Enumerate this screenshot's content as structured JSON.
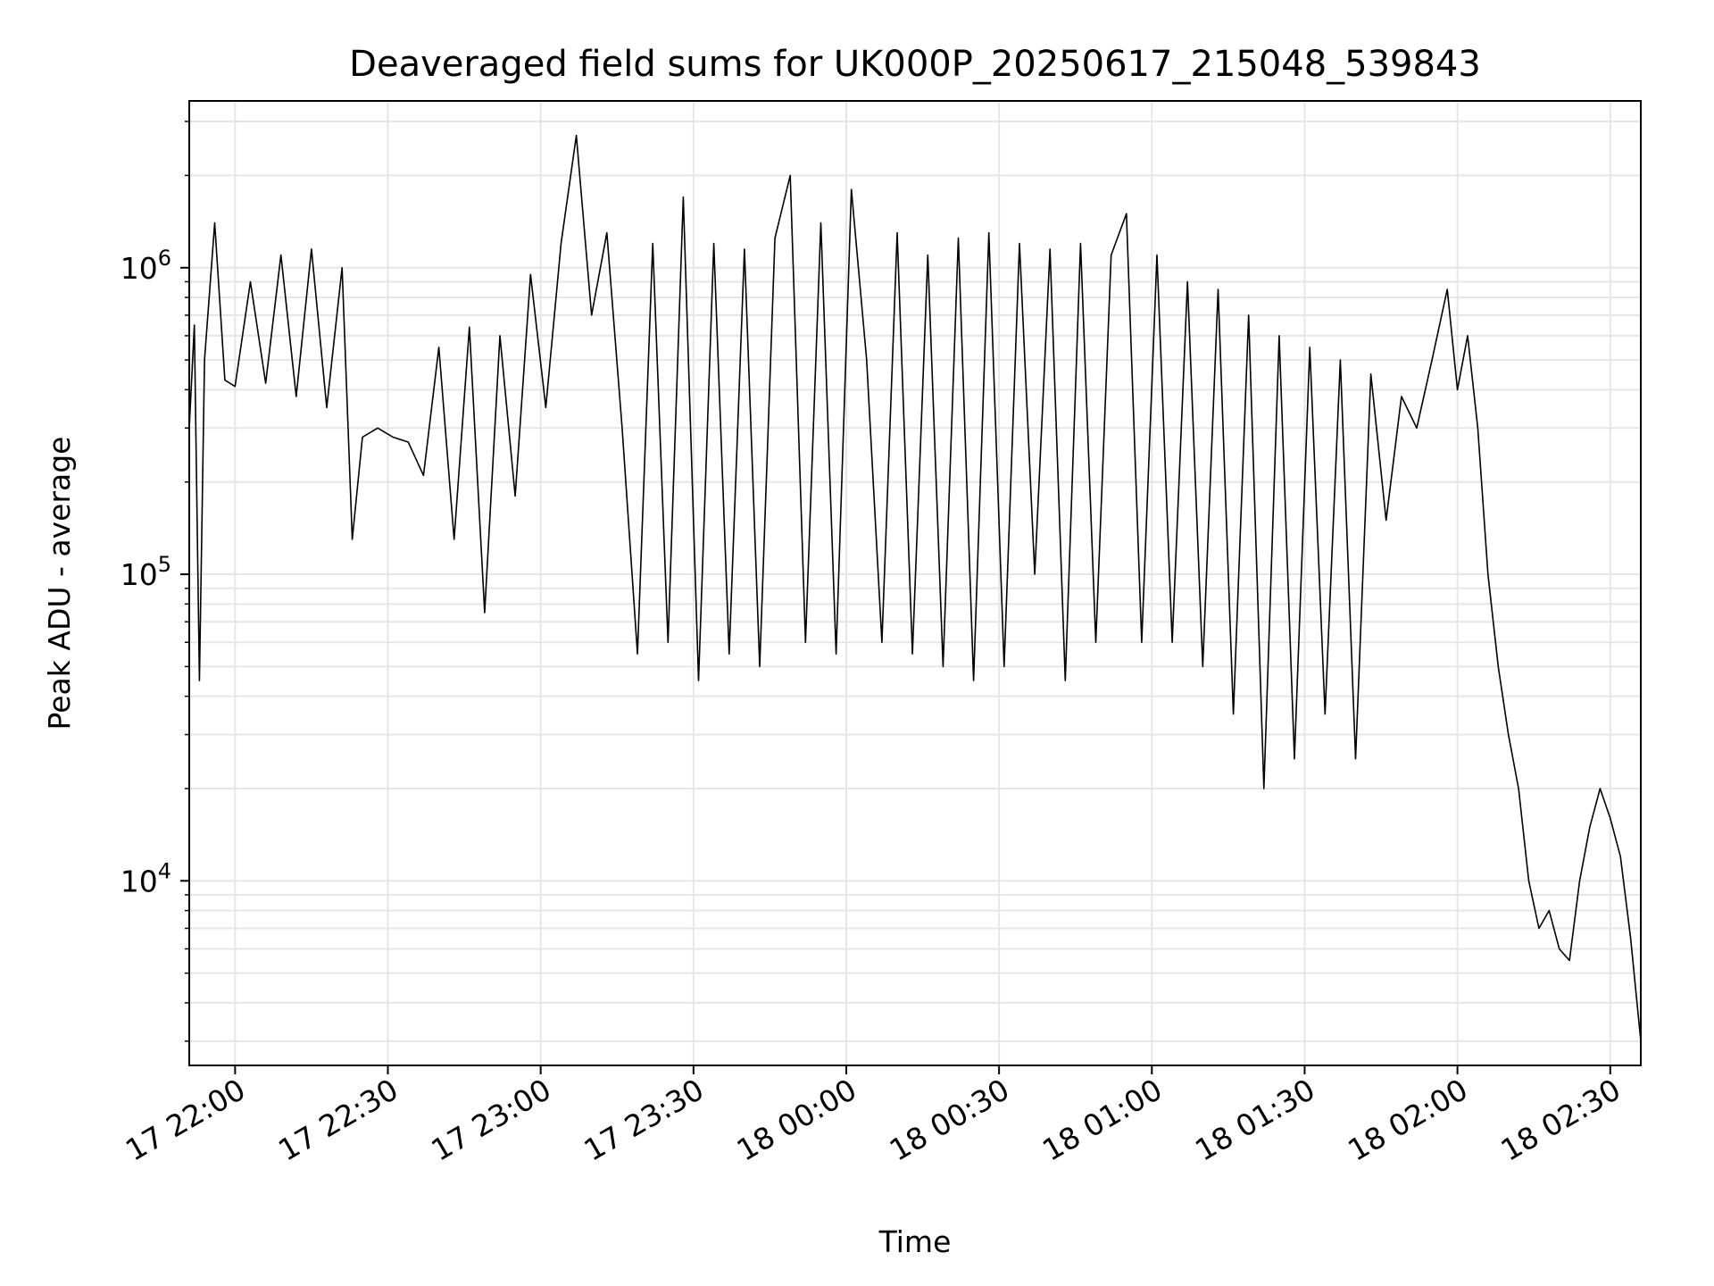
{
  "chart_data": {
    "type": "line",
    "title": "Deaveraged field sums for UK000P_20250617_215048_539843",
    "xlabel": "Time",
    "ylabel": "Peak ADU - average",
    "yscale": "log",
    "xlim": [
      "2025-06-17 21:51",
      "2025-06-18 02:36"
    ],
    "ylim": [
      2500,
      3500000
    ],
    "grid": true,
    "grid_minor_y": true,
    "x_ticks": [
      {
        "value": "2025-06-17 22:00",
        "label": "17 22:00"
      },
      {
        "value": "2025-06-17 22:30",
        "label": "17 22:30"
      },
      {
        "value": "2025-06-17 23:00",
        "label": "17 23:00"
      },
      {
        "value": "2025-06-17 23:30",
        "label": "17 23:30"
      },
      {
        "value": "2025-06-18 00:00",
        "label": "18 00:00"
      },
      {
        "value": "2025-06-18 00:30",
        "label": "18 00:30"
      },
      {
        "value": "2025-06-18 01:00",
        "label": "18 01:00"
      },
      {
        "value": "2025-06-18 01:30",
        "label": "18 01:30"
      },
      {
        "value": "2025-06-18 02:00",
        "label": "18 02:00"
      },
      {
        "value": "2025-06-18 02:30",
        "label": "18 02:30"
      }
    ],
    "y_ticks": [
      {
        "value": 10000,
        "base": "10",
        "exp": "4"
      },
      {
        "value": 100000,
        "base": "10",
        "exp": "5"
      },
      {
        "value": 1000000,
        "base": "10",
        "exp": "6"
      }
    ],
    "series": [
      {
        "color": "#000000",
        "x": [
          "2025-06-17 21:51",
          "2025-06-17 21:52",
          "2025-06-17 21:53",
          "2025-06-17 21:54",
          "2025-06-17 21:56",
          "2025-06-17 21:58",
          "2025-06-17 22:00",
          "2025-06-17 22:03",
          "2025-06-17 22:06",
          "2025-06-17 22:09",
          "2025-06-17 22:12",
          "2025-06-17 22:15",
          "2025-06-17 22:18",
          "2025-06-17 22:21",
          "2025-06-17 22:23",
          "2025-06-17 22:25",
          "2025-06-17 22:28",
          "2025-06-17 22:31",
          "2025-06-17 22:34",
          "2025-06-17 22:37",
          "2025-06-17 22:40",
          "2025-06-17 22:43",
          "2025-06-17 22:46",
          "2025-06-17 22:49",
          "2025-06-17 22:52",
          "2025-06-17 22:55",
          "2025-06-17 22:58",
          "2025-06-17 23:01",
          "2025-06-17 23:04",
          "2025-06-17 23:07",
          "2025-06-17 23:10",
          "2025-06-17 23:13",
          "2025-06-17 23:16",
          "2025-06-17 23:19",
          "2025-06-17 23:22",
          "2025-06-17 23:25",
          "2025-06-17 23:28",
          "2025-06-17 23:31",
          "2025-06-17 23:34",
          "2025-06-17 23:37",
          "2025-06-17 23:40",
          "2025-06-17 23:43",
          "2025-06-17 23:46",
          "2025-06-17 23:49",
          "2025-06-17 23:52",
          "2025-06-17 23:55",
          "2025-06-17 23:58",
          "2025-06-18 00:01",
          "2025-06-18 00:04",
          "2025-06-18 00:07",
          "2025-06-18 00:10",
          "2025-06-18 00:13",
          "2025-06-18 00:16",
          "2025-06-18 00:19",
          "2025-06-18 00:22",
          "2025-06-18 00:25",
          "2025-06-18 00:28",
          "2025-06-18 00:31",
          "2025-06-18 00:34",
          "2025-06-18 00:37",
          "2025-06-18 00:40",
          "2025-06-18 00:43",
          "2025-06-18 00:46",
          "2025-06-18 00:49",
          "2025-06-18 00:52",
          "2025-06-18 00:55",
          "2025-06-18 00:58",
          "2025-06-18 01:01",
          "2025-06-18 01:04",
          "2025-06-18 01:07",
          "2025-06-18 01:10",
          "2025-06-18 01:13",
          "2025-06-18 01:16",
          "2025-06-18 01:19",
          "2025-06-18 01:22",
          "2025-06-18 01:25",
          "2025-06-18 01:28",
          "2025-06-18 01:31",
          "2025-06-18 01:34",
          "2025-06-18 01:37",
          "2025-06-18 01:40",
          "2025-06-18 01:43",
          "2025-06-18 01:46",
          "2025-06-18 01:49",
          "2025-06-18 01:52",
          "2025-06-18 01:55",
          "2025-06-18 01:58",
          "2025-06-18 02:00",
          "2025-06-18 02:02",
          "2025-06-18 02:04",
          "2025-06-18 02:06",
          "2025-06-18 02:08",
          "2025-06-18 02:10",
          "2025-06-18 02:12",
          "2025-06-18 02:14",
          "2025-06-18 02:16",
          "2025-06-18 02:18",
          "2025-06-18 02:20",
          "2025-06-18 02:22",
          "2025-06-18 02:24",
          "2025-06-18 02:26",
          "2025-06-18 02:28",
          "2025-06-18 02:30",
          "2025-06-18 02:32",
          "2025-06-18 02:34",
          "2025-06-18 02:36"
        ],
        "y": [
          300000,
          650000,
          45000,
          500000,
          1400000,
          430000,
          410000,
          900000,
          420000,
          1100000,
          380000,
          1150000,
          350000,
          1000000,
          130000,
          280000,
          300000,
          280000,
          270000,
          210000,
          550000,
          130000,
          640000,
          75000,
          600000,
          180000,
          950000,
          350000,
          1200000,
          2700000,
          700000,
          1300000,
          300000,
          55000,
          1200000,
          60000,
          1700000,
          45000,
          1200000,
          55000,
          1150000,
          50000,
          1250000,
          2000000,
          60000,
          1400000,
          55000,
          1800000,
          500000,
          60000,
          1300000,
          55000,
          1100000,
          50000,
          1250000,
          45000,
          1300000,
          50000,
          1200000,
          100000,
          1150000,
          45000,
          1200000,
          60000,
          1100000,
          1500000,
          60000,
          1100000,
          60000,
          900000,
          50000,
          850000,
          35000,
          700000,
          20000,
          600000,
          25000,
          550000,
          35000,
          500000,
          25000,
          450000,
          150000,
          380000,
          300000,
          500000,
          850000,
          400000,
          600000,
          300000,
          100000,
          50000,
          30000,
          20000,
          10000,
          7000,
          8000,
          6000,
          5500,
          10000,
          15000,
          20000,
          16000,
          12000,
          6500,
          3000
        ]
      }
    ]
  }
}
